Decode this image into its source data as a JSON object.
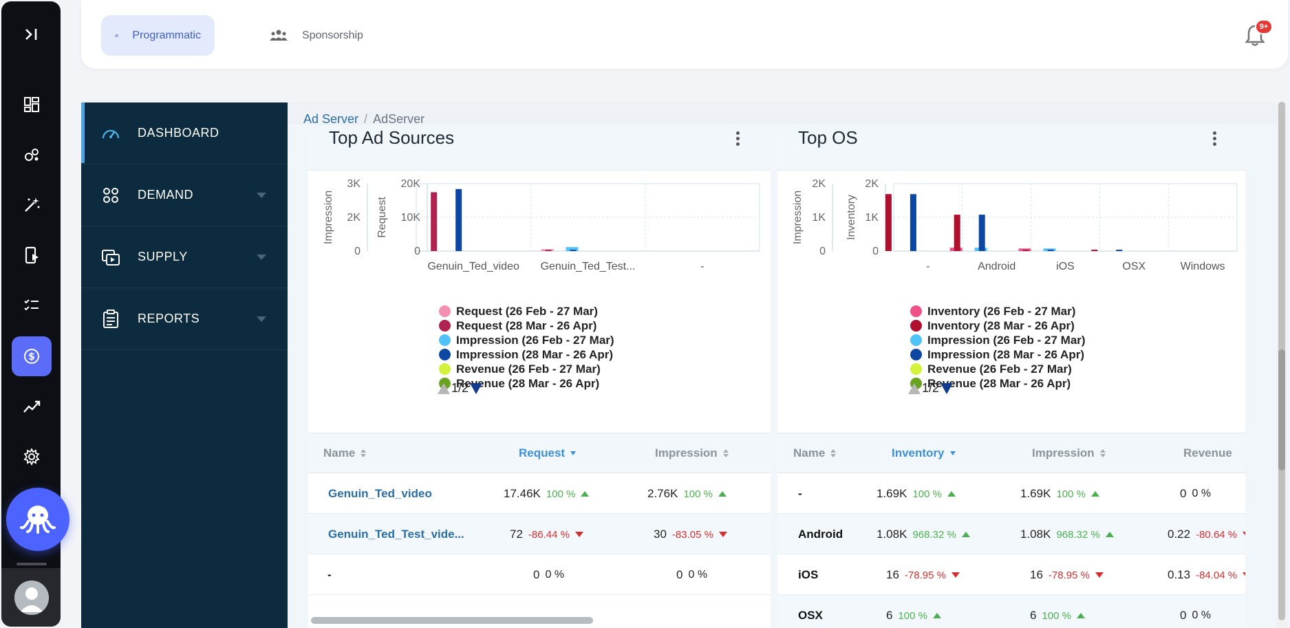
{
  "tabs": [
    {
      "label": "Programmatic",
      "active": true
    },
    {
      "label": "Sponsorship",
      "active": false
    }
  ],
  "notifications": {
    "badge": "9+"
  },
  "sidebar": {
    "items": [
      {
        "label": "DASHBOARD",
        "icon": "gauge-icon"
      },
      {
        "label": "DEMAND",
        "icon": "apps-icon"
      },
      {
        "label": "SUPPLY",
        "icon": "media-icon"
      },
      {
        "label": "REPORTS",
        "icon": "clipboard-icon"
      }
    ]
  },
  "breadcrumb": {
    "link": "Ad Server",
    "current": "AdServer"
  },
  "colors": {
    "req_prev": "#f48fb1",
    "req_cur": "#b0224f",
    "inv_prev": "#f0508a",
    "inv_cur": "#b0102e",
    "imp_prev": "#4fc3f7",
    "imp_cur": "#0d47a1",
    "rev_prev": "#d4f23c",
    "rev_cur": "#6aa31f"
  },
  "cards": {
    "ad_sources": {
      "title": "Top Ad Sources",
      "legend": [
        "Request (26 Feb - 27 Mar)",
        "Request (28 Mar - 26 Apr)",
        "Impression (26 Feb - 27 Mar)",
        "Impression (28 Mar - 26 Apr)",
        "Revenue (26 Feb - 27 Mar)",
        "Revenue (28 Mar - 26 Apr)"
      ],
      "pager": "1/2",
      "columns": [
        "Name",
        "Request",
        "Impression"
      ],
      "rows": [
        {
          "name": "Genuin_Ted_video",
          "request": "17.46K",
          "request_pct": "100 %",
          "request_dir": "up",
          "impression": "2.76K",
          "impression_pct": "100 %",
          "impression_dir": "up"
        },
        {
          "name": "Genuin_Ted_Test_vide...",
          "request": "72",
          "request_pct": "-86.44 %",
          "request_dir": "down",
          "impression": "30",
          "impression_pct": "-83.05 %",
          "impression_dir": "down"
        },
        {
          "name": "-",
          "request": "0",
          "request_pct": "0 %",
          "request_dir": "none",
          "impression": "0",
          "impression_pct": "0 %",
          "impression_dir": "none"
        }
      ]
    },
    "top_os": {
      "title": "Top OS",
      "legend": [
        "Inventory (26 Feb - 27 Mar)",
        "Inventory (28 Mar - 26 Apr)",
        "Impression (26 Feb - 27 Mar)",
        "Impression (28 Mar - 26 Apr)",
        "Revenue (26 Feb - 27 Mar)",
        "Revenue (28 Mar - 26 Apr)"
      ],
      "pager": "1/2",
      "columns": [
        "Name",
        "Inventory",
        "Impression",
        "Revenue"
      ],
      "rows": [
        {
          "name": "-",
          "inventory": "1.69K",
          "inventory_pct": "100 %",
          "inventory_dir": "up",
          "impression": "1.69K",
          "impression_pct": "100 %",
          "impression_dir": "up",
          "revenue": "0",
          "revenue_pct": "0 %",
          "revenue_dir": "none"
        },
        {
          "name": "Android",
          "inventory": "1.08K",
          "inventory_pct": "968.32 %",
          "inventory_dir": "up",
          "impression": "1.08K",
          "impression_pct": "968.32 %",
          "impression_dir": "up",
          "revenue": "0.22",
          "revenue_pct": "-80.64 %",
          "revenue_dir": "down"
        },
        {
          "name": "iOS",
          "inventory": "16",
          "inventory_pct": "-78.95 %",
          "inventory_dir": "down",
          "impression": "16",
          "impression_pct": "-78.95 %",
          "impression_dir": "down",
          "revenue": "0.13",
          "revenue_pct": "-84.04 %",
          "revenue_dir": "down"
        },
        {
          "name": "OSX",
          "inventory": "6",
          "inventory_pct": "100 %",
          "inventory_dir": "up",
          "impression": "6",
          "impression_pct": "100 %",
          "impression_dir": "up",
          "revenue": "0",
          "revenue_pct": "0 %",
          "revenue_dir": "none"
        }
      ]
    }
  },
  "chart_data": [
    {
      "type": "bar",
      "categories": [
        "Genuin_Ted_video",
        "Genuin_Ted_Test...",
        "-"
      ],
      "left_axes": [
        {
          "label": "Impression",
          "ticks": [
            "3K",
            "2K",
            "0"
          ],
          "max": 3000
        },
        {
          "label": "Request",
          "ticks": [
            "20K",
            "10K",
            "0"
          ],
          "max": 20000
        }
      ],
      "series": [
        {
          "name": "Request (26 Feb - 27 Mar)",
          "axis": "Request",
          "values": [
            0,
            531,
            0
          ]
        },
        {
          "name": "Request (28 Mar - 26 Apr)",
          "axis": "Request",
          "values": [
            17460,
            72,
            0
          ]
        },
        {
          "name": "Impression (26 Feb - 27 Mar)",
          "axis": "Impression",
          "values": [
            0,
            177,
            0
          ]
        },
        {
          "name": "Impression (28 Mar - 26 Apr)",
          "axis": "Impression",
          "values": [
            2760,
            30,
            0
          ]
        }
      ]
    },
    {
      "type": "bar",
      "categories": [
        "-",
        "Android",
        "iOS",
        "OSX",
        "Windows"
      ],
      "left_axes": [
        {
          "label": "Impression",
          "ticks": [
            "2K",
            "1K",
            "0"
          ],
          "max": 2000
        },
        {
          "label": "Inventory",
          "ticks": [
            "2K",
            "1K",
            "0"
          ],
          "max": 2000
        }
      ],
      "series": [
        {
          "name": "Inventory (26 Feb - 27 Mar)",
          "axis": "Inventory",
          "values": [
            0,
            101,
            76,
            0,
            0
          ]
        },
        {
          "name": "Inventory (28 Mar - 26 Apr)",
          "axis": "Inventory",
          "values": [
            1690,
            1080,
            16,
            6,
            0
          ]
        },
        {
          "name": "Impression (26 Feb - 27 Mar)",
          "axis": "Impression",
          "values": [
            0,
            101,
            76,
            0,
            0
          ]
        },
        {
          "name": "Impression (28 Mar - 26 Apr)",
          "axis": "Impression",
          "values": [
            1690,
            1080,
            16,
            6,
            0
          ]
        }
      ]
    }
  ]
}
